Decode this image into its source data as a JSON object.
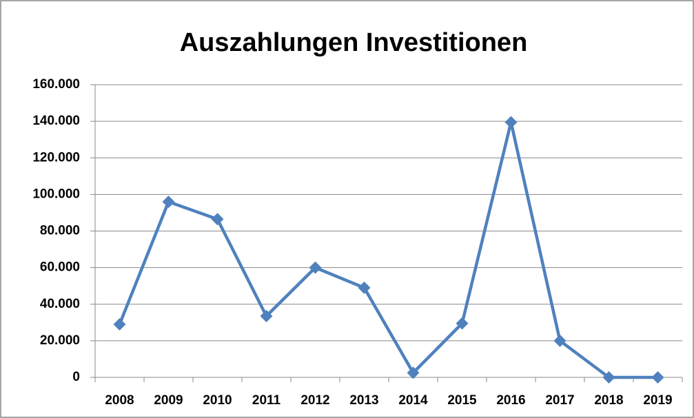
{
  "chart_data": {
    "type": "line",
    "title": "Auszahlungen Investitionen",
    "categories": [
      "2008",
      "2009",
      "2010",
      "2011",
      "2012",
      "2013",
      "2014",
      "2015",
      "2016",
      "2017",
      "2018",
      "2019"
    ],
    "series": [
      {
        "name": "Auszahlungen Investitionen",
        "color": "#4f81bd",
        "values": [
          29000,
          96000,
          86500,
          33500,
          60000,
          49000,
          2500,
          29500,
          139500,
          20000,
          0,
          0
        ]
      }
    ],
    "ylim": [
      0,
      160000
    ],
    "yticks": [
      0,
      {
        "value": 20000,
        "label": "20.000"
      },
      {
        "value": 40000,
        "label": "40.000"
      },
      {
        "value": 60000,
        "label": "60.000"
      },
      {
        "value": 80000,
        "label": "80.000"
      },
      {
        "value": 100000,
        "label": "100.000"
      },
      {
        "value": 120000,
        "label": "120.000"
      },
      {
        "value": 140000,
        "label": "140.000"
      },
      {
        "value": 160000,
        "label": "160.000"
      }
    ],
    "grid": true
  }
}
